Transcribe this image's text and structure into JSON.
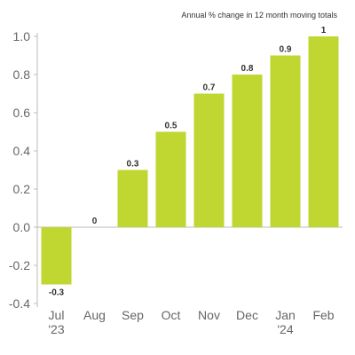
{
  "chart_data": {
    "type": "bar",
    "title": "",
    "subtitle": "Annual % change in 12 month moving totals",
    "xlabel": "",
    "ylabel": "",
    "categories": [
      "Jul '23",
      "Aug",
      "Sep",
      "Oct",
      "Nov",
      "Dec",
      "Jan '24",
      "Feb"
    ],
    "category_lines": [
      [
        "Jul",
        "'23"
      ],
      [
        "Aug"
      ],
      [
        "Sep"
      ],
      [
        "Oct"
      ],
      [
        "Nov"
      ],
      [
        "Dec"
      ],
      [
        "Jan",
        "'24"
      ],
      [
        "Feb"
      ]
    ],
    "values": [
      -0.3,
      0,
      0.3,
      0.5,
      0.7,
      0.8,
      0.9,
      1
    ],
    "data_labels": [
      "-0.3",
      "0",
      "0.3",
      "0.5",
      "0.7",
      "0.8",
      "0.9",
      "1"
    ],
    "ylim": [
      -0.4,
      1.0
    ],
    "yticks": [
      -0.4,
      -0.2,
      0.0,
      0.2,
      0.4,
      0.6,
      0.8,
      1.0
    ],
    "ytick_labels": [
      "-0.4",
      "-0.2",
      "0.0",
      "0.2",
      "0.4",
      "0.6",
      "0.8",
      "1.0"
    ],
    "grid": false,
    "bar_color": "#bfd730",
    "axis_color": "#bbbbbb"
  }
}
